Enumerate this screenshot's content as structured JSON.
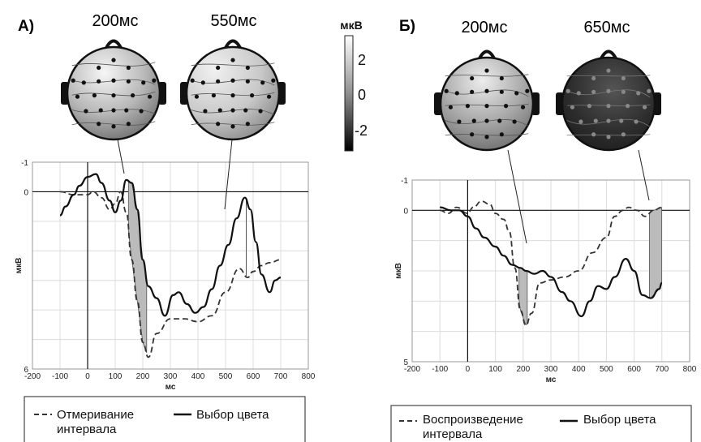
{
  "panels": [
    {
      "label": "А)",
      "map_labels": [
        "200мс",
        "550мс"
      ],
      "legend_dashed": [
        "Отмеривание",
        "интервала"
      ],
      "legend_solid": "Выбор цвета"
    },
    {
      "label": "Б)",
      "map_labels": [
        "200мс",
        "650мс"
      ],
      "legend_dashed": [
        "Воспроизведение",
        "интервала"
      ],
      "legend_solid": "Выбор цвета"
    }
  ],
  "colorbar": {
    "unit": "мкВ",
    "ticks": [
      "2",
      "0",
      "-2"
    ],
    "range": [
      -3,
      3.3
    ]
  },
  "colors": {
    "solid": "#111111",
    "dashed": "#333333",
    "shade": "#bbbbbb",
    "grid": "#dcdcdc"
  },
  "chart_data": [
    {
      "type": "line",
      "xlabel": "мс",
      "ylabel": "мкВ",
      "xlim": [
        -200,
        800
      ],
      "ylim": [
        -1,
        6
      ],
      "y_ticks": [
        "-1",
        "0",
        "6"
      ],
      "x_ticks": [
        "-200",
        "-100",
        "0",
        "100",
        "200",
        "300",
        "400",
        "500",
        "600",
        "700",
        "800"
      ],
      "series": [
        {
          "name": "Отмеривание интервала",
          "style": "dashed",
          "x": [
            -100,
            -50,
            0,
            20,
            50,
            80,
            100,
            120,
            140,
            160,
            180,
            200,
            220,
            250,
            300,
            350,
            400,
            450,
            500,
            550,
            580,
            600,
            630,
            660,
            700
          ],
          "y": [
            0,
            0.1,
            0.1,
            0.0,
            0.2,
            0.6,
            0.4,
            0.0,
            0.7,
            2.3,
            3.7,
            5.1,
            5.6,
            4.8,
            4.3,
            4.3,
            4.4,
            4.2,
            3.4,
            2.6,
            2.9,
            2.7,
            2.5,
            2.4,
            2.3
          ]
        },
        {
          "name": "Выбор цвета",
          "style": "solid",
          "x": [
            -100,
            -80,
            -50,
            -30,
            0,
            30,
            50,
            80,
            100,
            120,
            140,
            160,
            180,
            200,
            220,
            250,
            280,
            310,
            330,
            360,
            390,
            420,
            450,
            480,
            510,
            540,
            570,
            590,
            610,
            630,
            660,
            680,
            700
          ],
          "y": [
            0.8,
            0.5,
            0.1,
            -0.2,
            -0.5,
            -0.6,
            -0.3,
            0.3,
            0.7,
            0.3,
            -0.4,
            -0.3,
            0.6,
            2.3,
            3.2,
            3.6,
            4.2,
            3.5,
            3.4,
            3.8,
            4.1,
            3.9,
            3.3,
            2.5,
            1.8,
            0.9,
            0.2,
            0.6,
            1.7,
            2.8,
            3.4,
            3.0,
            2.9
          ]
        }
      ],
      "shaded_intervals": [
        [
          148,
          215
        ],
        [
          575,
          575
        ]
      ],
      "map_times": [
        200,
        550
      ]
    },
    {
      "type": "line",
      "xlabel": "мс",
      "ylabel": "мкВ",
      "xlim": [
        -200,
        800
      ],
      "ylim": [
        -1,
        5
      ],
      "y_ticks": [
        "-1",
        "0",
        "5"
      ],
      "x_ticks": [
        "-200",
        "-100",
        "0",
        "100",
        "200",
        "300",
        "400",
        "500",
        "600",
        "700",
        "800"
      ],
      "series": [
        {
          "name": "Воспроизведение интервала",
          "style": "dashed",
          "x": [
            -100,
            -70,
            -40,
            0,
            20,
            50,
            80,
            100,
            130,
            150,
            170,
            190,
            210,
            230,
            260,
            300,
            350,
            400,
            450,
            500,
            530,
            560,
            580,
            610,
            640,
            670,
            700
          ],
          "y": [
            0.0,
            0.1,
            -0.1,
            0.1,
            -0.1,
            -0.3,
            -0.2,
            0.1,
            0.3,
            0.7,
            1.9,
            3.3,
            3.8,
            3.4,
            2.4,
            2.3,
            2.2,
            2.0,
            1.4,
            0.9,
            0.2,
            0.0,
            -0.1,
            0.0,
            0.2,
            0.0,
            -0.1
          ]
        },
        {
          "name": "Выбор цвета",
          "style": "solid",
          "x": [
            -100,
            -60,
            -30,
            0,
            30,
            60,
            100,
            130,
            160,
            190,
            210,
            240,
            270,
            300,
            340,
            370,
            410,
            440,
            470,
            500,
            530,
            570,
            600,
            630,
            660,
            690,
            700
          ],
          "y": [
            -0.1,
            0.0,
            0.0,
            0.2,
            0.6,
            0.9,
            1.2,
            1.5,
            1.8,
            1.9,
            2.0,
            2.1,
            2.0,
            2.2,
            2.7,
            3.0,
            3.5,
            3.0,
            2.5,
            2.6,
            2.2,
            1.6,
            2.0,
            2.8,
            2.9,
            2.6,
            2.4
          ]
        }
      ],
      "shaded_intervals": [
        [
          185,
          215
        ],
        [
          655,
          700
        ]
      ],
      "map_times": [
        200,
        650
      ]
    }
  ]
}
